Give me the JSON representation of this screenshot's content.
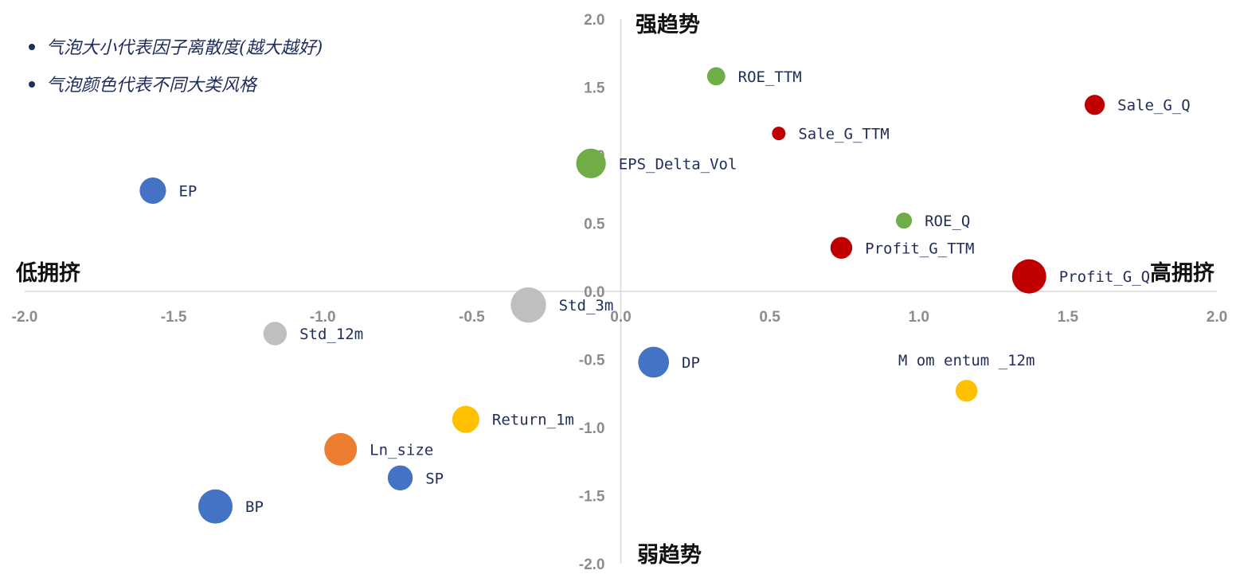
{
  "notes": [
    "气泡大小代表因子离散度(越大越好)",
    "气泡颜色代表不同大类风格"
  ],
  "quadrants": {
    "top": "强趋势",
    "bottom": "弱趋势",
    "left": "低拥挤",
    "right": "高拥挤"
  },
  "colors": {
    "value": "#4472c4",
    "profitability": "#70ad47",
    "growth": "#c00000",
    "volatility": "#bfbfbf",
    "momentum": "#ffc000",
    "size": "#ed7d31",
    "axis": "#d9d9d9",
    "tick": "#8c8c8c",
    "label": "#1f2d5a"
  },
  "chart_data": {
    "type": "scatter",
    "xlim": [
      -2.0,
      2.0
    ],
    "ylim": [
      -2.0,
      2.0
    ],
    "xticks": [
      "-2.0",
      "-1.5",
      "-1.0",
      "-0.5",
      "0.0",
      "0.5",
      "1.0",
      "1.5",
      "2.0"
    ],
    "yticks": [
      "2.0",
      "1.5",
      "1.0",
      "0.5",
      "0.0",
      "-0.5",
      "-1.0",
      "-1.5",
      "-2.0"
    ],
    "grid": false,
    "points": [
      {
        "name": "ROE_TTM",
        "x": 0.32,
        "y": 1.58,
        "size": 0.45,
        "color": "profitability"
      },
      {
        "name": "Sale_G_Q",
        "x": 1.59,
        "y": 1.37,
        "size": 0.55,
        "color": "growth"
      },
      {
        "name": "Sale_G_TTM",
        "x": 0.53,
        "y": 1.16,
        "size": 0.25,
        "color": "growth"
      },
      {
        "name": "EPS_Delta_Vol",
        "x": -0.1,
        "y": 0.94,
        "size": 1.2,
        "color": "profitability"
      },
      {
        "name": "EP",
        "x": -1.57,
        "y": 0.74,
        "size": 0.95,
        "color": "value"
      },
      {
        "name": "ROE_Q",
        "x": 0.95,
        "y": 0.52,
        "size": 0.35,
        "color": "profitability"
      },
      {
        "name": "Profit_G_TTM",
        "x": 0.74,
        "y": 0.32,
        "size": 0.65,
        "color": "growth"
      },
      {
        "name": "Profit_G_Q",
        "x": 1.37,
        "y": 0.11,
        "size": 1.6,
        "color": "growth"
      },
      {
        "name": "Std_3m",
        "x": -0.31,
        "y": -0.1,
        "size": 1.7,
        "color": "volatility"
      },
      {
        "name": "Std_12m",
        "x": -1.16,
        "y": -0.31,
        "size": 0.75,
        "color": "volatility"
      },
      {
        "name": "DP",
        "x": 0.11,
        "y": -0.52,
        "size": 1.3,
        "color": "value"
      },
      {
        "name": "M om entum _12m",
        "x": 1.16,
        "y": -0.73,
        "size": 0.65,
        "color": "momentum"
      },
      {
        "name": "Return_1m",
        "x": -0.52,
        "y": -0.94,
        "size": 1.0,
        "color": "momentum"
      },
      {
        "name": "Ln_size",
        "x": -0.94,
        "y": -1.16,
        "size": 1.45,
        "color": "size"
      },
      {
        "name": "SP",
        "x": -0.74,
        "y": -1.37,
        "size": 0.85,
        "color": "value"
      },
      {
        "name": "BP",
        "x": -1.36,
        "y": -1.58,
        "size": 1.6,
        "color": "value"
      }
    ]
  }
}
